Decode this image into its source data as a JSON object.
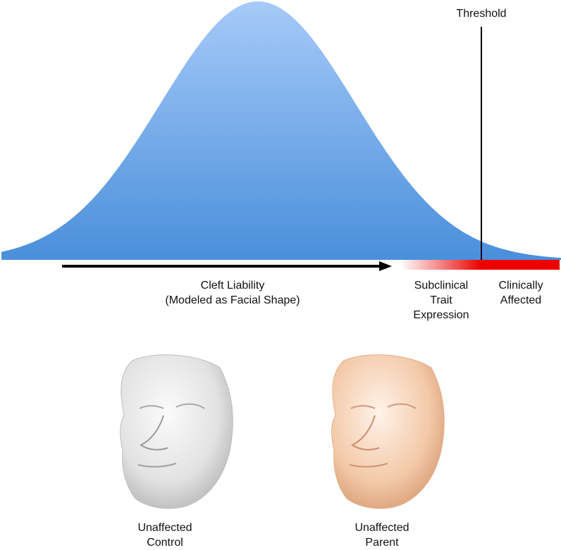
{
  "threshold_label": "Threshold",
  "liability_label": "Cleft Liability",
  "liability_sublabel": "(Modeled as Facial Shape)",
  "subclinical_label": [
    "Subclinical",
    "Trait",
    "Expression"
  ],
  "affected_label": [
    "Clinically",
    "Affected"
  ],
  "faces": [
    {
      "label": [
        "Unaffected",
        "Control"
      ],
      "tone": "gray"
    },
    {
      "label": [
        "Unaffected",
        "Parent"
      ],
      "tone": "peach"
    }
  ],
  "colors": {
    "curve_top": "#a6caf8",
    "curve_bottom": "#4a8fdb",
    "affected_red": "#ee0000",
    "arrow": "#000000",
    "face_gray": "#d9d9d9",
    "face_peach": "#f3c9a8"
  }
}
